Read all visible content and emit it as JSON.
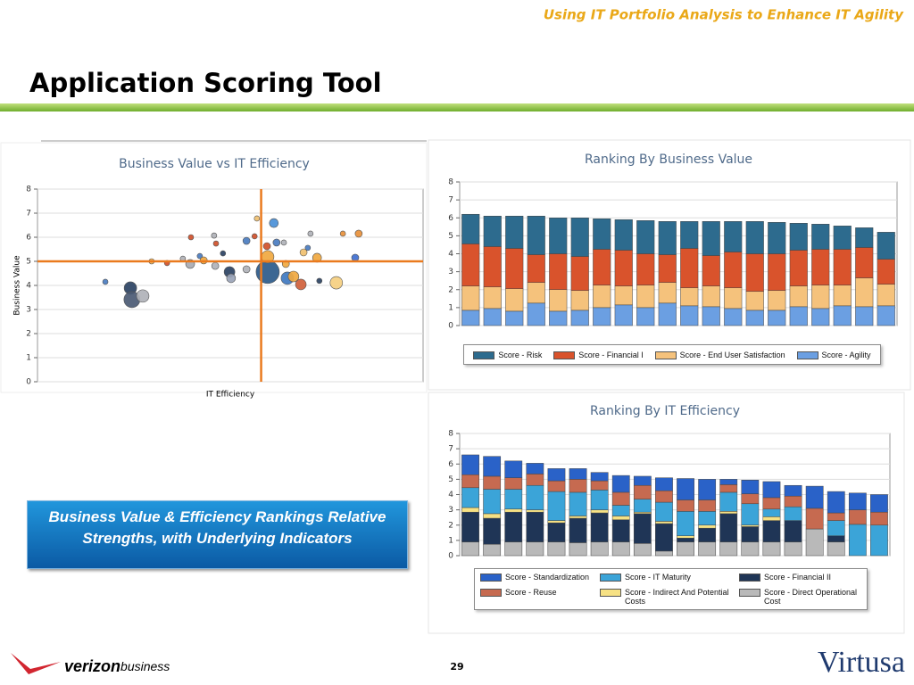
{
  "header": "Using IT Portfolio Analysis to Enhance IT Agility",
  "title": "Application Scoring Tool",
  "callout": "Business Value & Efficiency Rankings Relative Strengths, with Underlying Indicators",
  "page_number": "29",
  "footer": {
    "left_logo_bold": "verizon",
    "left_logo_rest": "business",
    "right_logo": "Virtusa"
  },
  "chart_data": [
    {
      "type": "scatter",
      "title": "Business Value vs IT Efficiency",
      "x_label": "IT Efficiency",
      "y_label": "Business Value",
      "xlim": [
        0,
        10
      ],
      "ylim": [
        0,
        8
      ],
      "yticks": [
        0,
        1,
        2,
        3,
        4,
        5,
        6,
        7,
        8
      ],
      "grid": true,
      "reference_lines": {
        "x": 5.8,
        "y": 5,
        "color": "#ea7a1e"
      },
      "x": [
        1.76,
        2.41,
        2.45,
        2.73,
        2.96,
        3.36,
        3.77,
        3.96,
        3.98,
        4.21,
        4.31,
        4.58,
        4.63,
        4.61,
        4.81,
        4.98,
        5.02,
        5.42,
        5.42,
        5.63,
        5.69,
        5.95,
        5.97,
        6.13,
        5.97,
        6.2,
        6.39,
        6.44,
        6.48,
        6.64,
        6.83,
        7.01,
        7.08,
        6.9,
        7.25,
        7.31,
        7.75,
        7.92,
        8.24,
        8.33
      ],
      "values": [
        4.15,
        3.89,
        3.41,
        3.56,
        5.0,
        4.93,
        5.11,
        4.89,
        6.0,
        5.22,
        5.04,
        6.07,
        5.74,
        4.81,
        5.33,
        4.56,
        4.3,
        5.85,
        4.67,
        6.04,
        6.78,
        5.63,
        4.56,
        6.59,
        5.19,
        5.78,
        5.78,
        4.89,
        4.3,
        4.37,
        4.04,
        5.56,
        6.15,
        5.37,
        5.15,
        4.19,
        4.11,
        6.15,
        5.15,
        6.15
      ],
      "sizes": [
        3,
        7,
        9,
        7,
        3,
        3,
        3,
        5,
        3,
        3,
        4,
        3,
        3,
        4,
        3,
        6,
        5,
        4,
        4,
        3,
        3,
        4,
        13,
        5,
        7,
        4,
        3,
        4,
        7,
        6,
        6,
        3,
        3,
        4,
        5,
        3,
        7,
        3,
        4,
        4
      ],
      "colors": [
        "#4a7cc0",
        "#2b4263",
        "#4b5a74",
        "#b0b2b8",
        "#f0b050",
        "#d0502a",
        "#b0b2b8",
        "#a8aab2",
        "#d0502a",
        "#4a7cc0",
        "#f0a840",
        "#b0b2b8",
        "#d0502a",
        "#b0b2b8",
        "#2b4263",
        "#2b4263",
        "#9aa4b8",
        "#4a7cc0",
        "#b0b2b8",
        "#d0502a",
        "#f0c070",
        "#d0502a",
        "#2b5a8a",
        "#4a90d8",
        "#f0a840",
        "#4a7cc0",
        "#b0b2b8",
        "#f0a840",
        "#3f78c0",
        "#f0a840",
        "#d0603a",
        "#4a7cc0",
        "#b0b2b8",
        "#f0c070",
        "#f0a840",
        "#2b4263",
        "#f5cf80",
        "#e8903a",
        "#3f6fd0",
        "#e8903a"
      ]
    },
    {
      "type": "bar",
      "stacked": true,
      "title": "Ranking By Business Value",
      "ylim": [
        0,
        8
      ],
      "yticks": [
        0,
        1,
        2,
        3,
        4,
        5,
        6,
        7,
        8
      ],
      "grid": true,
      "series": [
        {
          "name": "Score - Risk",
          "color": "#2d6b8e",
          "values": [
            1.65,
            1.7,
            1.8,
            2.15,
            2.0,
            2.15,
            1.7,
            1.7,
            1.85,
            1.85,
            1.5,
            1.9,
            1.7,
            1.8,
            1.75,
            1.5,
            1.4,
            1.3,
            1.1,
            1.5
          ]
        },
        {
          "name": "Score - Financial I",
          "color": "#d9532c",
          "values": [
            2.35,
            2.25,
            2.25,
            1.55,
            2.0,
            1.9,
            2.0,
            2.0,
            1.75,
            1.55,
            2.2,
            1.7,
            2.0,
            2.1,
            2.05,
            2.0,
            2.0,
            2.0,
            1.7,
            1.4
          ]
        },
        {
          "name": "Score - End User Satisfaction",
          "color": "#f5c27c",
          "values": [
            1.35,
            1.2,
            1.25,
            1.15,
            1.2,
            1.1,
            1.25,
            1.05,
            1.25,
            1.15,
            1.0,
            1.15,
            1.15,
            1.05,
            1.1,
            1.15,
            1.3,
            1.15,
            1.6,
            1.2
          ]
        },
        {
          "name": "Score - Agility",
          "color": "#6b9fe2",
          "values": [
            0.85,
            0.95,
            0.8,
            1.25,
            0.8,
            0.85,
            1.0,
            1.15,
            1.0,
            1.25,
            1.1,
            1.05,
            0.95,
            0.85,
            0.85,
            1.05,
            0.95,
            1.1,
            1.05,
            1.1
          ]
        }
      ]
    },
    {
      "type": "bar",
      "stacked": true,
      "title": "Ranking By IT Efficiency",
      "ylim": [
        0,
        8
      ],
      "yticks": [
        0,
        1,
        2,
        3,
        4,
        5,
        6,
        7,
        8
      ],
      "grid": true,
      "series": [
        {
          "name": "Score - Standardization",
          "color": "#2a62c8",
          "values": [
            1.3,
            1.3,
            1.1,
            0.7,
            0.8,
            0.7,
            0.55,
            1.1,
            0.6,
            0.85,
            1.4,
            1.35,
            0.35,
            0.9,
            1.05,
            0.7,
            1.45,
            1.4,
            1.1,
            1.15
          ]
        },
        {
          "name": "Score - IT Maturity",
          "color": "#3ba4d8",
          "values": [
            1.3,
            1.6,
            1.3,
            1.6,
            1.9,
            1.55,
            1.3,
            0.7,
            0.85,
            1.25,
            1.6,
            0.9,
            1.25,
            1.4,
            0.5,
            0.9,
            0,
            1.0,
            2.05,
            2.0
          ]
        },
        {
          "name": "Score - Financial II",
          "color": "#1f3556",
          "values": [
            1.95,
            1.7,
            1.95,
            1.95,
            1.25,
            1.6,
            1.9,
            1.45,
            1.95,
            1.8,
            0.25,
            0.9,
            1.85,
            1.0,
            1.4,
            1.4,
            0,
            0.4,
            0,
            0
          ]
        },
        {
          "name": "Score - Reuse",
          "color": "#c66a50",
          "values": [
            0.85,
            0.85,
            0.75,
            0.75,
            0.7,
            0.85,
            0.6,
            0.85,
            0.9,
            0.75,
            0.75,
            0.75,
            0.5,
            0.65,
            0.75,
            0.7,
            1.35,
            0.5,
            0.95,
            0.85
          ]
        },
        {
          "name": "Score - Indirect And Potential Costs",
          "color": "#f6e184",
          "values": [
            0.3,
            0.3,
            0.2,
            0.15,
            0.15,
            0.15,
            0.2,
            0.25,
            0.1,
            0.15,
            0.15,
            0.2,
            0.15,
            0.1,
            0.25,
            0,
            0,
            0,
            0,
            0
          ]
        },
        {
          "name": "Score - Direct Operational Cost",
          "color": "#b9b9b9",
          "values": [
            0.9,
            0.75,
            0.9,
            0.9,
            0.9,
            0.85,
            0.9,
            0.9,
            0.8,
            0.3,
            0.9,
            0.9,
            0.9,
            0.9,
            0.9,
            0.9,
            1.75,
            0.9,
            0,
            0
          ]
        }
      ]
    }
  ]
}
